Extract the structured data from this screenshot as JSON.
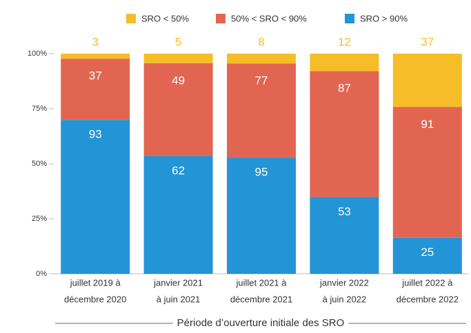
{
  "chart_data": {
    "type": "bar",
    "stacking": "percent",
    "categories": [
      [
        "juillet 2019 à",
        "décembre 2020"
      ],
      [
        "janvier 2021",
        "à juin 2021"
      ],
      [
        "juillet 2021 à",
        "décembre 2021"
      ],
      [
        "janvier 2022",
        "à juin 2022"
      ],
      [
        "juillet 2022 à",
        "décembre 2022"
      ]
    ],
    "series": [
      {
        "name": "SRO < 50%",
        "color": "#f5bd27",
        "values": [
          3,
          5,
          8,
          12,
          37
        ]
      },
      {
        "name": "50% < SRO < 90%",
        "color": "#e26552",
        "values": [
          37,
          49,
          77,
          87,
          91
        ]
      },
      {
        "name": "SRO > 90%",
        "color": "#2394d6",
        "values": [
          93,
          62,
          95,
          53,
          25
        ]
      }
    ],
    "ylim": [
      0,
      100
    ],
    "yticks": [
      {
        "value": 0,
        "label": "0%"
      },
      {
        "value": 25,
        "label": "25%"
      },
      {
        "value": 50,
        "label": "50%"
      },
      {
        "value": 75,
        "label": "75%"
      },
      {
        "value": 100,
        "label": "100%"
      }
    ],
    "x_label": "Période d’ouverture initiale des SRO",
    "grid": false,
    "legend": "top"
  }
}
